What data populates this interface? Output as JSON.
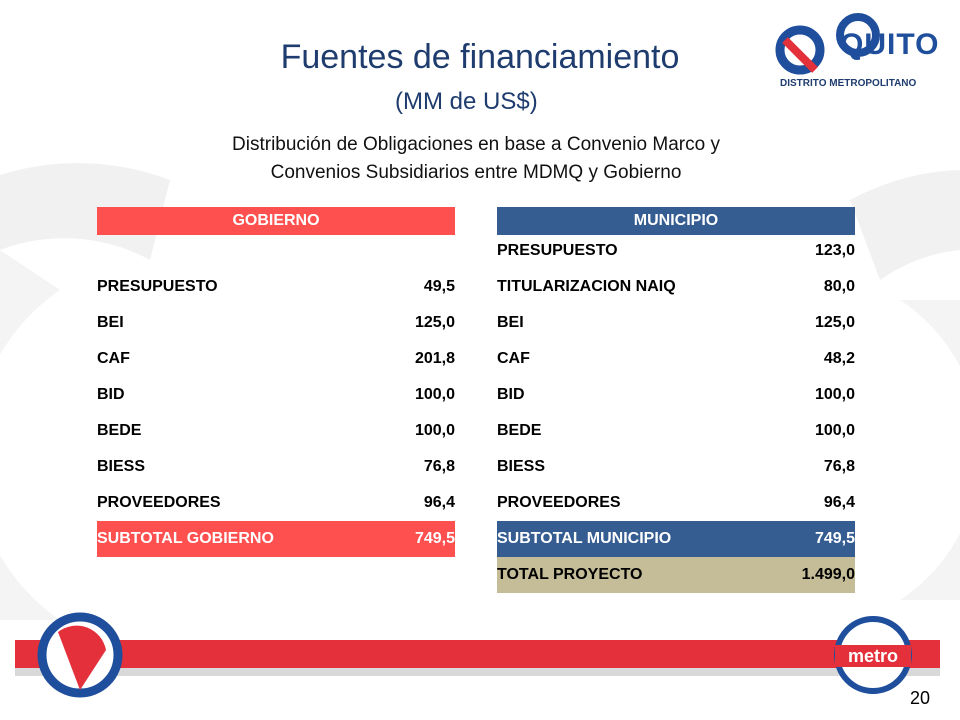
{
  "header": {
    "title": "Fuentes de financiamiento",
    "subtitle": "(MM de US$)",
    "description": [
      "Distribución de Obligaciones en base a Convenio Marco y",
      "Convenios Subsidiarios entre MDMQ y Gobierno"
    ]
  },
  "logo": {
    "name": "QUITO",
    "tagline": "DISTRITO METROPOLITANO",
    "metro": "metro"
  },
  "gobierno": {
    "header": "GOBIERNO",
    "rows": [
      [
        "PRESUPUESTO",
        "49,5"
      ],
      [
        "BEI",
        "125,0"
      ],
      [
        "CAF",
        "201,8"
      ],
      [
        "BID",
        "100,0"
      ],
      [
        "BEDE",
        "100,0"
      ],
      [
        "BIESS",
        "76,8"
      ],
      [
        "PROVEEDORES",
        "96,4"
      ]
    ],
    "subtotal": [
      "SUBTOTAL GOBIERNO",
      "749,5"
    ]
  },
  "municipio": {
    "header": "MUNICIPIO",
    "rows": [
      [
        "PRESUPUESTO",
        "123,0"
      ],
      [
        "TITULARIZACION NAIQ",
        "80,0"
      ],
      [
        "BEI",
        "125,0"
      ],
      [
        "CAF",
        "48,2"
      ],
      [
        "BID",
        "100,0"
      ],
      [
        "BEDE",
        "100,0"
      ],
      [
        "BIESS",
        "76,8"
      ],
      [
        "PROVEEDORES",
        "96,4"
      ]
    ],
    "subtotal": [
      "SUBTOTAL MUNICIPIO",
      "749,5"
    ],
    "total": [
      "TOTAL PROYECTO",
      "1.499,0"
    ]
  },
  "page_number": "20"
}
